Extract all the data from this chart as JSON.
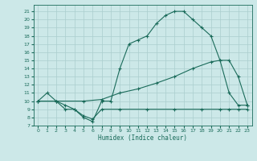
{
  "xlabel": "Humidex (Indice chaleur)",
  "bg_color": "#cce8e8",
  "line_color": "#1a6b5a",
  "grid_color": "#aacece",
  "xlim": [
    -0.5,
    23.5
  ],
  "ylim": [
    7,
    21.8
  ],
  "xticks": [
    0,
    1,
    2,
    3,
    4,
    5,
    6,
    7,
    8,
    9,
    10,
    11,
    12,
    13,
    14,
    15,
    16,
    17,
    18,
    19,
    20,
    21,
    22,
    23
  ],
  "yticks": [
    7,
    8,
    9,
    10,
    11,
    12,
    13,
    14,
    15,
    16,
    17,
    18,
    19,
    20,
    21
  ],
  "line1": {
    "x": [
      0,
      1,
      2,
      3,
      4,
      5,
      6,
      7,
      8,
      9,
      10,
      11,
      12,
      13,
      14,
      15,
      16,
      17,
      18,
      19,
      20,
      21,
      22,
      23
    ],
    "y": [
      10,
      11,
      10,
      9,
      9,
      8,
      7.5,
      10,
      10,
      14,
      17,
      17.5,
      18,
      19.5,
      20.5,
      21,
      21,
      20,
      19,
      18,
      15,
      11,
      9.5,
      9.5
    ]
  },
  "line2": {
    "x": [
      0,
      2,
      5,
      7,
      9,
      11,
      13,
      15,
      17,
      19,
      20,
      21,
      22,
      23
    ],
    "y": [
      10,
      10,
      10,
      10.2,
      11,
      11.5,
      12.2,
      13,
      14,
      14.8,
      15,
      15,
      13,
      9.5
    ]
  },
  "line3": {
    "x": [
      0,
      2,
      3,
      4,
      5,
      6,
      7,
      9,
      12,
      15,
      18,
      20,
      21,
      22,
      23
    ],
    "y": [
      10,
      10,
      9.5,
      9,
      8.2,
      7.8,
      9,
      9,
      9,
      9,
      9,
      9,
      9,
      9,
      9
    ]
  }
}
